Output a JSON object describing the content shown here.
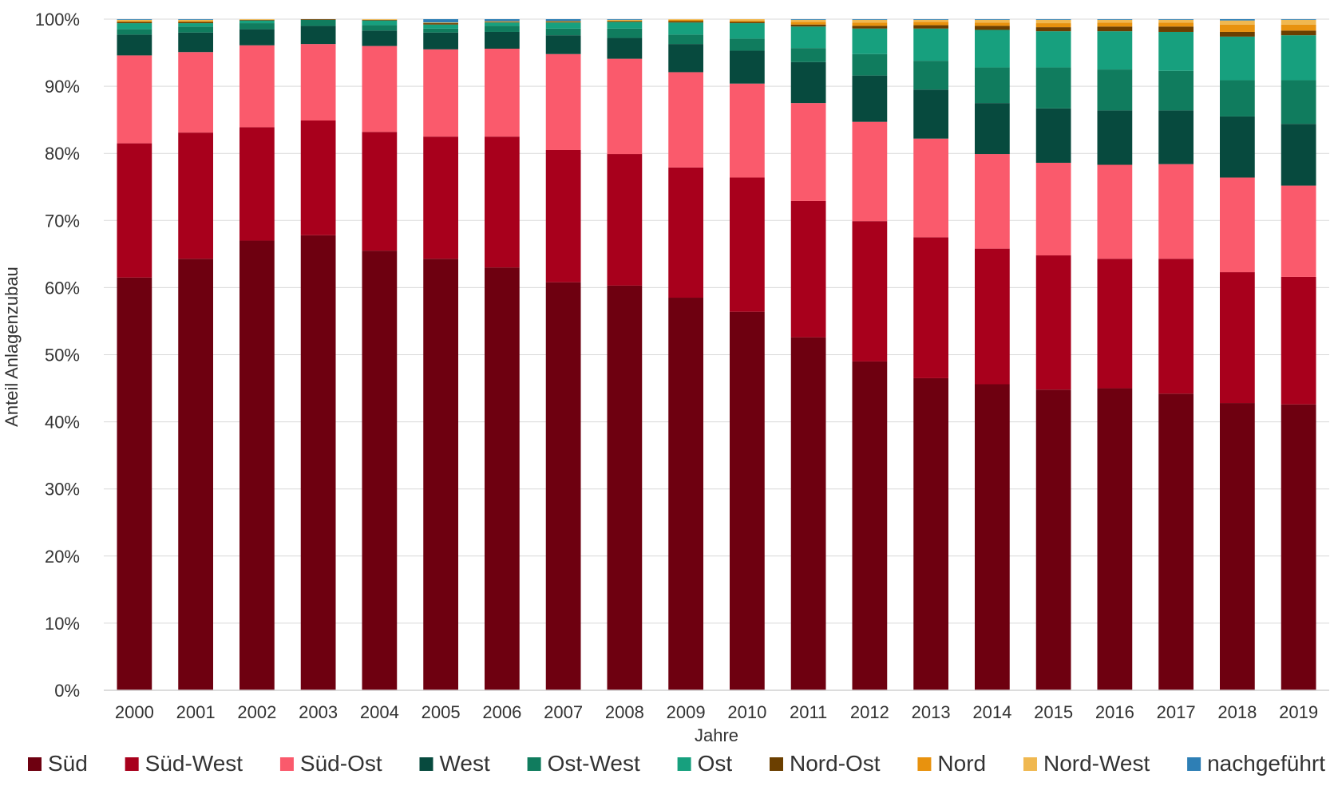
{
  "chart_data": {
    "type": "bar",
    "stacked": true,
    "normalized": true,
    "xlabel": "Jahre",
    "ylabel": "Anteil Anlagenzubau",
    "ylim": [
      0,
      100
    ],
    "y_unit": "%",
    "y_ticks": [
      "0%",
      "10%",
      "20%",
      "30%",
      "40%",
      "50%",
      "60%",
      "70%",
      "80%",
      "90%",
      "100%"
    ],
    "grid": "horizontal",
    "legend_position": "bottom",
    "categories": [
      "2000",
      "2001",
      "2002",
      "2003",
      "2004",
      "2005",
      "2006",
      "2007",
      "2008",
      "2009",
      "2010",
      "2011",
      "2012",
      "2013",
      "2014",
      "2015",
      "2016",
      "2017",
      "2018",
      "2019"
    ],
    "series": [
      {
        "name": "Süd",
        "color": "#6e0010",
        "values": [
          61.5,
          64.3,
          67.0,
          67.8,
          65.5,
          64.3,
          63.0,
          60.8,
          60.3,
          58.5,
          56.4,
          52.6,
          49.0,
          46.5,
          45.6,
          44.8,
          45.0,
          44.2,
          42.8,
          42.6
        ]
      },
      {
        "name": "Süd-West",
        "color": "#a8001c",
        "values": [
          20.0,
          18.8,
          16.9,
          17.1,
          17.7,
          18.2,
          19.5,
          19.7,
          19.6,
          19.4,
          20.0,
          20.3,
          20.9,
          21.0,
          20.2,
          20.0,
          19.3,
          20.1,
          19.5,
          19.0
        ]
      },
      {
        "name": "Süd-Ost",
        "color": "#fa5a6c",
        "values": [
          13.1,
          12.0,
          12.2,
          11.4,
          12.8,
          13.0,
          13.1,
          14.3,
          14.2,
          14.2,
          14.0,
          14.6,
          14.8,
          14.7,
          14.1,
          13.8,
          14.0,
          14.1,
          14.1,
          13.6
        ]
      },
      {
        "name": "West",
        "color": "#074a3e",
        "values": [
          3.1,
          2.9,
          2.4,
          2.7,
          2.3,
          2.5,
          2.5,
          2.8,
          3.1,
          4.2,
          4.9,
          6.1,
          6.9,
          7.3,
          7.6,
          8.1,
          8.1,
          8.0,
          9.1,
          9.2
        ]
      },
      {
        "name": "Ost-West",
        "color": "#107c5e",
        "values": [
          0.8,
          0.9,
          0.9,
          0.9,
          0.8,
          0.6,
          0.9,
          1.0,
          1.4,
          1.4,
          1.8,
          2.1,
          3.2,
          4.3,
          5.3,
          6.1,
          6.1,
          5.9,
          5.4,
          6.5
        ]
      },
      {
        "name": "Ost",
        "color": "#17a07e",
        "values": [
          0.9,
          0.5,
          0.4,
          0.0,
          0.7,
          0.6,
          0.5,
          0.9,
          1.0,
          1.8,
          2.3,
          3.2,
          3.8,
          4.8,
          5.6,
          5.4,
          5.7,
          5.8,
          6.5,
          6.7
        ]
      },
      {
        "name": "Nord-Ost",
        "color": "#6b3f00",
        "values": [
          0.2,
          0.2,
          0.1,
          0.1,
          0.1,
          0.2,
          0.1,
          0.1,
          0.1,
          0.2,
          0.2,
          0.3,
          0.4,
          0.5,
          0.6,
          0.6,
          0.7,
          0.8,
          0.7,
          0.7
        ]
      },
      {
        "name": "Nord",
        "color": "#e8920e",
        "values": [
          0.1,
          0.1,
          0.0,
          0.0,
          0.0,
          0.0,
          0.0,
          0.1,
          0.1,
          0.2,
          0.2,
          0.4,
          0.5,
          0.5,
          0.5,
          0.6,
          0.6,
          0.6,
          1.1,
          0.9
        ]
      },
      {
        "name": "Nord-West",
        "color": "#f0b850",
        "values": [
          0.2,
          0.2,
          0.1,
          0.0,
          0.1,
          0.1,
          0.1,
          0.0,
          0.1,
          0.1,
          0.2,
          0.3,
          0.4,
          0.3,
          0.4,
          0.5,
          0.4,
          0.4,
          0.6,
          0.7
        ]
      },
      {
        "name": "nachgeführt",
        "color": "#2e7fb5",
        "values": [
          0.1,
          0.1,
          0.0,
          0.0,
          0.0,
          0.5,
          0.3,
          0.3,
          0.1,
          0.0,
          0.0,
          0.1,
          0.1,
          0.1,
          0.1,
          0.1,
          0.1,
          0.1,
          0.2,
          0.1
        ]
      }
    ]
  }
}
